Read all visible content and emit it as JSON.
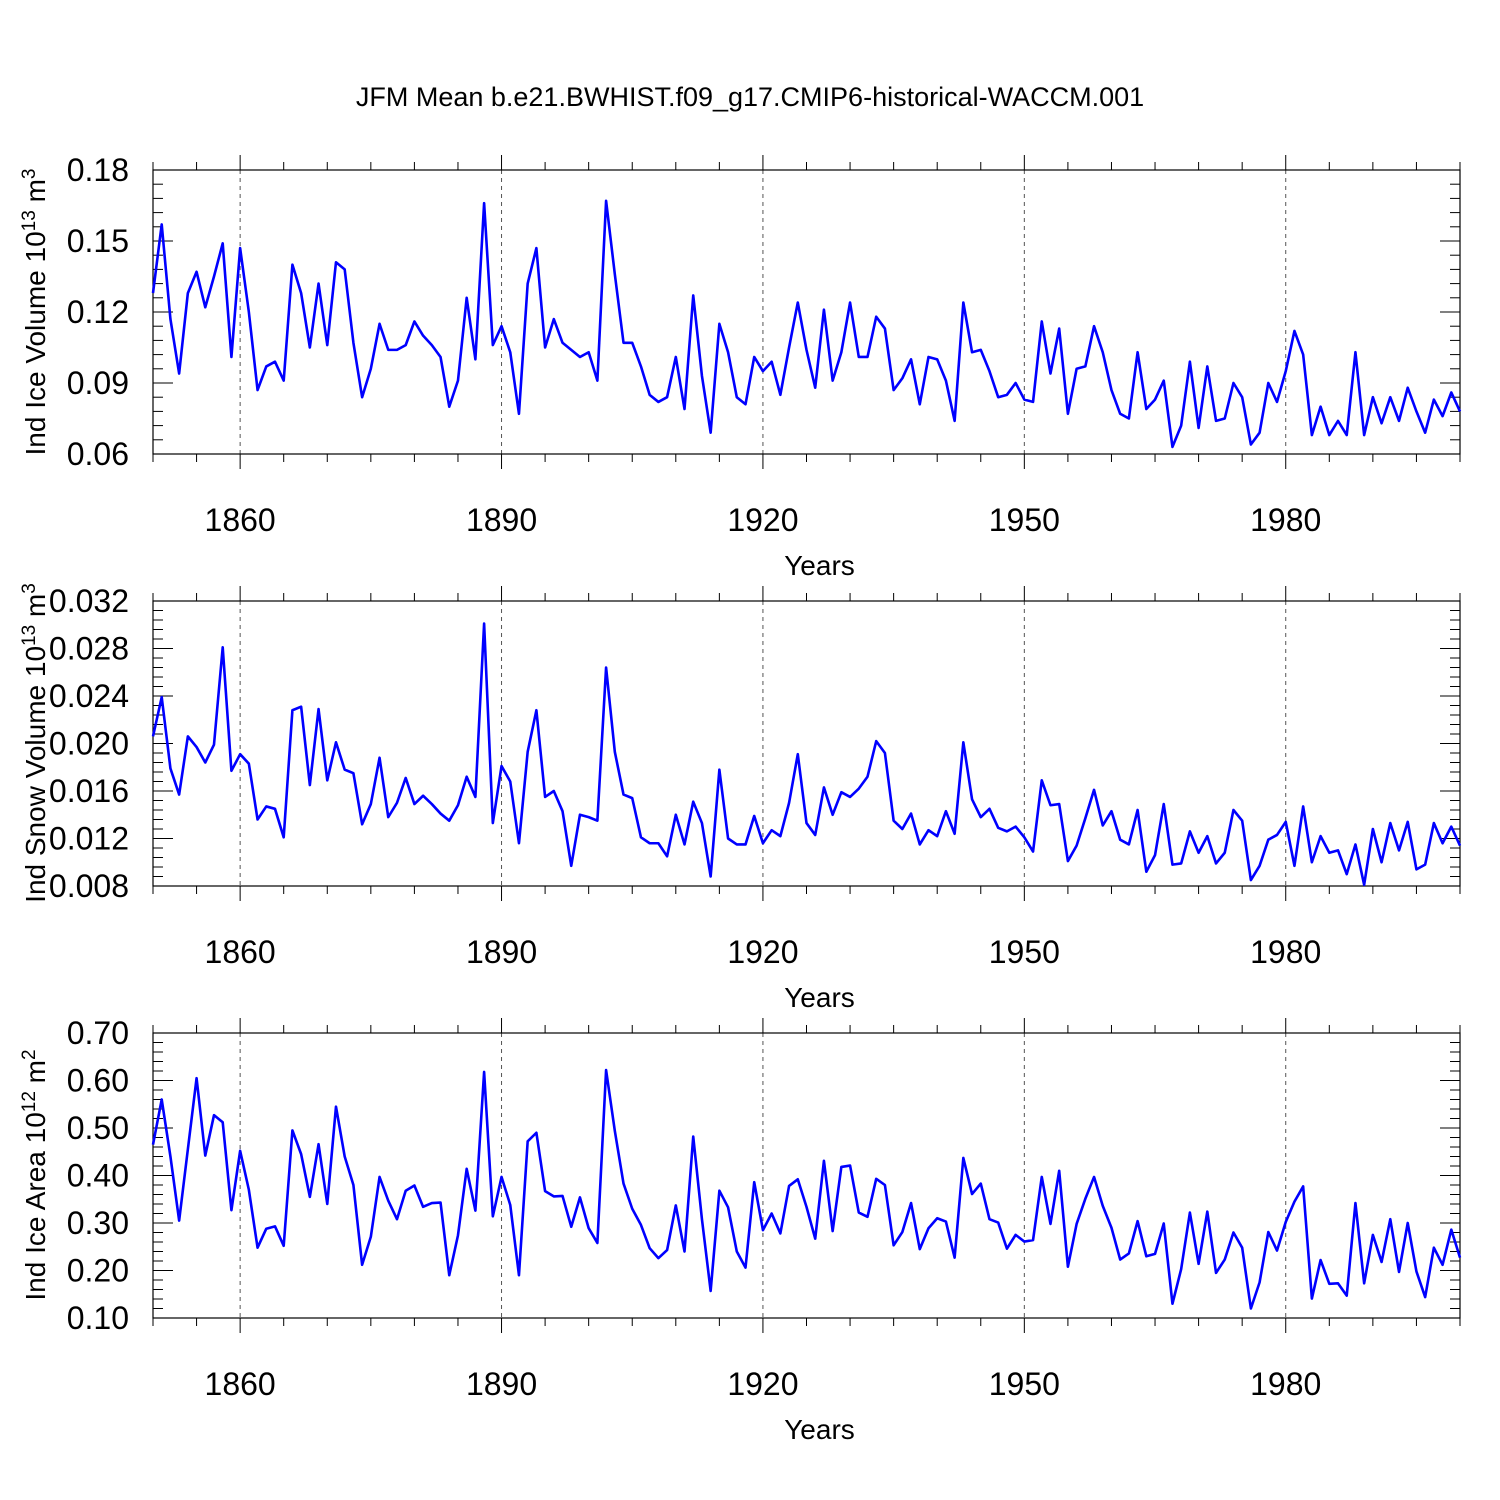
{
  "figure": {
    "title": "JFM Mean b.e21.BWHIST.f09_g17.CMIP6-historical-WACCM.001"
  },
  "chart_data": [
    {
      "type": "line",
      "ylabel": "Ind Ice Volume 10",
      "ylabel_exp": "13",
      "ylabel_unit": " m",
      "ylabel_unit_exp": "3",
      "xlabel": "Years",
      "x_start": 1850,
      "xlim": [
        1850,
        2000
      ],
      "ylim": [
        0.06,
        0.18
      ],
      "yticks": [
        "0.06",
        "0.09",
        "0.12",
        "0.15",
        "0.18"
      ],
      "xticks": [
        "1860",
        "1890",
        "1920",
        "1950",
        "1980"
      ],
      "grid": "vertical dashed at major x ticks",
      "color": "#0000ff",
      "values": [
        0.128,
        0.157,
        0.117,
        0.094,
        0.128,
        0.137,
        0.122,
        0.135,
        0.149,
        0.101,
        0.147,
        0.12,
        0.087,
        0.097,
        0.099,
        0.091,
        0.14,
        0.128,
        0.105,
        0.132,
        0.106,
        0.141,
        0.138,
        0.107,
        0.084,
        0.096,
        0.115,
        0.104,
        0.104,
        0.106,
        0.116,
        0.11,
        0.106,
        0.101,
        0.08,
        0.091,
        0.126,
        0.1,
        0.166,
        0.106,
        0.114,
        0.103,
        0.077,
        0.132,
        0.147,
        0.105,
        0.117,
        0.107,
        0.104,
        0.101,
        0.103,
        0.091,
        0.167,
        0.136,
        0.107,
        0.107,
        0.097,
        0.085,
        0.082,
        0.084,
        0.101,
        0.079,
        0.127,
        0.093,
        0.069,
        0.115,
        0.103,
        0.084,
        0.081,
        0.101,
        0.095,
        0.099,
        0.085,
        0.105,
        0.124,
        0.104,
        0.088,
        0.121,
        0.091,
        0.103,
        0.124,
        0.101,
        0.101,
        0.118,
        0.113,
        0.087,
        0.092,
        0.1,
        0.081,
        0.101,
        0.1,
        0.091,
        0.074,
        0.124,
        0.103,
        0.104,
        0.095,
        0.084,
        0.085,
        0.09,
        0.083,
        0.082,
        0.116,
        0.094,
        0.113,
        0.077,
        0.096,
        0.097,
        0.114,
        0.103,
        0.087,
        0.077,
        0.075,
        0.103,
        0.079,
        0.083,
        0.091,
        0.063,
        0.072,
        0.099,
        0.071,
        0.097,
        0.074,
        0.075,
        0.09,
        0.084,
        0.064,
        0.069,
        0.09,
        0.082,
        0.095,
        0.112,
        0.102,
        0.068,
        0.08,
        0.068,
        0.074,
        0.068,
        0.103,
        0.068,
        0.084,
        0.073,
        0.084,
        0.074,
        0.088,
        0.078,
        0.069,
        0.083,
        0.076,
        0.086,
        0.078
      ]
    },
    {
      "type": "line",
      "ylabel": "Ind Snow Volume 10",
      "ylabel_exp": "13",
      "ylabel_unit": " m",
      "ylabel_unit_exp": "3",
      "xlabel": "Years",
      "x_start": 1850,
      "xlim": [
        1850,
        2000
      ],
      "ylim": [
        0.008,
        0.032
      ],
      "yticks": [
        "0.008",
        "0.012",
        "0.016",
        "0.020",
        "0.024",
        "0.028",
        "0.032"
      ],
      "xticks": [
        "1860",
        "1890",
        "1920",
        "1950",
        "1980"
      ],
      "grid": "vertical dashed at major x ticks",
      "color": "#0000ff",
      "values": [
        0.0206,
        0.0239,
        0.0179,
        0.0157,
        0.0206,
        0.0197,
        0.0184,
        0.0199,
        0.0281,
        0.0177,
        0.0191,
        0.0183,
        0.0136,
        0.0147,
        0.0145,
        0.0121,
        0.0228,
        0.0231,
        0.0165,
        0.0229,
        0.0169,
        0.0201,
        0.0178,
        0.0175,
        0.0132,
        0.0149,
        0.0188,
        0.0138,
        0.015,
        0.0171,
        0.0149,
        0.0156,
        0.0149,
        0.0141,
        0.0135,
        0.0148,
        0.0172,
        0.0155,
        0.0301,
        0.0133,
        0.0181,
        0.0168,
        0.0116,
        0.0193,
        0.0228,
        0.0155,
        0.016,
        0.0143,
        0.0097,
        0.014,
        0.0138,
        0.0135,
        0.0264,
        0.0193,
        0.0157,
        0.0154,
        0.0121,
        0.0116,
        0.0116,
        0.0105,
        0.014,
        0.0115,
        0.0151,
        0.0133,
        0.0088,
        0.0178,
        0.012,
        0.0115,
        0.0115,
        0.0139,
        0.0116,
        0.0127,
        0.0122,
        0.015,
        0.0191,
        0.0133,
        0.0123,
        0.0163,
        0.014,
        0.0159,
        0.0155,
        0.0162,
        0.0172,
        0.0202,
        0.0192,
        0.0135,
        0.0128,
        0.0141,
        0.0115,
        0.0127,
        0.0122,
        0.0143,
        0.0124,
        0.0201,
        0.0153,
        0.0138,
        0.0145,
        0.0129,
        0.0126,
        0.013,
        0.0121,
        0.0109,
        0.0169,
        0.0148,
        0.0149,
        0.0101,
        0.0114,
        0.0137,
        0.0161,
        0.0131,
        0.0143,
        0.0119,
        0.0115,
        0.0144,
        0.0092,
        0.0106,
        0.0149,
        0.0098,
        0.0099,
        0.0126,
        0.0108,
        0.0122,
        0.0099,
        0.0108,
        0.0144,
        0.0135,
        0.0085,
        0.0097,
        0.0119,
        0.0123,
        0.0134,
        0.0097,
        0.0147,
        0.01,
        0.0122,
        0.0108,
        0.011,
        0.009,
        0.0115,
        0.0081,
        0.0128,
        0.01,
        0.0133,
        0.011,
        0.0134,
        0.0094,
        0.0098,
        0.0133,
        0.0116,
        0.013,
        0.0114
      ]
    },
    {
      "type": "line",
      "ylabel": "Ind Ice Area 10",
      "ylabel_exp": "12",
      "ylabel_unit": " m",
      "ylabel_unit_exp": "2",
      "xlabel": "Years",
      "x_start": 1850,
      "xlim": [
        1850,
        2000
      ],
      "ylim": [
        0.1,
        0.7
      ],
      "yticks": [
        "0.10",
        "0.20",
        "0.30",
        "0.40",
        "0.50",
        "0.60",
        "0.70"
      ],
      "xticks": [
        "1860",
        "1890",
        "1920",
        "1950",
        "1980"
      ],
      "grid": "vertical dashed at major x ticks",
      "color": "#0000ff",
      "values": [
        0.465,
        0.56,
        0.44,
        0.305,
        0.455,
        0.605,
        0.442,
        0.527,
        0.512,
        0.327,
        0.452,
        0.37,
        0.248,
        0.288,
        0.293,
        0.252,
        0.495,
        0.445,
        0.355,
        0.466,
        0.34,
        0.545,
        0.44,
        0.38,
        0.212,
        0.271,
        0.397,
        0.347,
        0.308,
        0.368,
        0.379,
        0.334,
        0.342,
        0.343,
        0.19,
        0.274,
        0.414,
        0.326,
        0.618,
        0.314,
        0.397,
        0.338,
        0.19,
        0.472,
        0.49,
        0.367,
        0.356,
        0.357,
        0.292,
        0.354,
        0.289,
        0.258,
        0.622,
        0.494,
        0.383,
        0.33,
        0.296,
        0.247,
        0.226,
        0.243,
        0.337,
        0.24,
        0.482,
        0.308,
        0.157,
        0.368,
        0.333,
        0.24,
        0.206,
        0.386,
        0.285,
        0.32,
        0.278,
        0.378,
        0.392,
        0.334,
        0.267,
        0.431,
        0.283,
        0.418,
        0.421,
        0.322,
        0.313,
        0.393,
        0.38,
        0.253,
        0.281,
        0.342,
        0.245,
        0.289,
        0.31,
        0.303,
        0.227,
        0.437,
        0.361,
        0.383,
        0.308,
        0.301,
        0.246,
        0.275,
        0.261,
        0.264,
        0.397,
        0.298,
        0.41,
        0.208,
        0.298,
        0.351,
        0.397,
        0.336,
        0.29,
        0.223,
        0.236,
        0.304,
        0.23,
        0.235,
        0.299,
        0.13,
        0.203,
        0.322,
        0.214,
        0.324,
        0.195,
        0.223,
        0.28,
        0.248,
        0.12,
        0.175,
        0.281,
        0.242,
        0.302,
        0.345,
        0.377,
        0.141,
        0.222,
        0.172,
        0.173,
        0.147,
        0.342,
        0.173,
        0.275,
        0.218,
        0.308,
        0.197,
        0.3,
        0.198,
        0.144,
        0.248,
        0.212,
        0.286,
        0.227
      ]
    }
  ]
}
